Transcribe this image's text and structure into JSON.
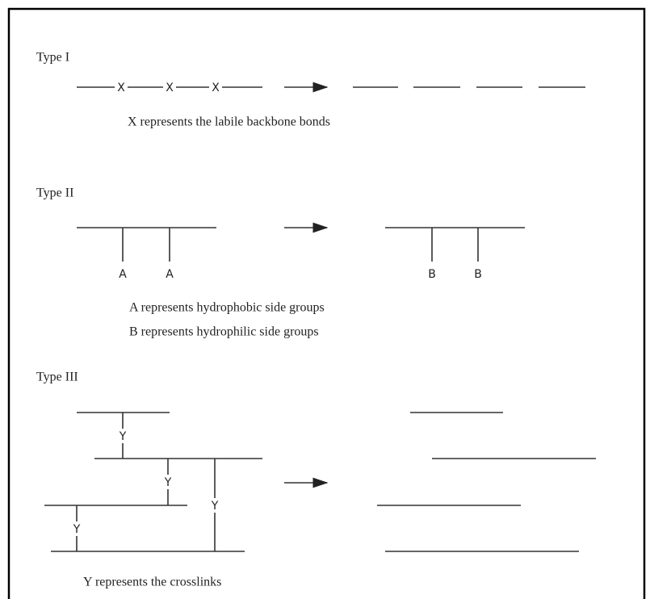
{
  "sections": [
    {
      "title": "Type I",
      "labels": [
        "X",
        "X",
        "X"
      ],
      "legend": [
        "X represents the labile backbone bonds"
      ]
    },
    {
      "title": "Type II",
      "labels": [
        "A",
        "A",
        "B",
        "B"
      ],
      "legend": [
        "A represents hydrophobic side groups",
        "B represents hydrophilic side groups"
      ]
    },
    {
      "title": "Type III",
      "labels": [
        "Y",
        "Y",
        "Y",
        "Y"
      ],
      "legend": [
        "Y represents the crosslinks"
      ]
    }
  ]
}
